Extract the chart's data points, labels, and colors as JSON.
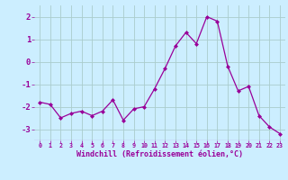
{
  "x": [
    0,
    1,
    2,
    3,
    4,
    5,
    6,
    7,
    8,
    9,
    10,
    11,
    12,
    13,
    14,
    15,
    16,
    17,
    18,
    19,
    20,
    21,
    22,
    23
  ],
  "y": [
    -1.8,
    -1.9,
    -2.5,
    -2.3,
    -2.2,
    -2.4,
    -2.2,
    -1.7,
    -2.6,
    -2.1,
    -2.0,
    -1.2,
    -0.3,
    0.7,
    1.3,
    0.8,
    2.0,
    1.8,
    -0.2,
    -1.3,
    -1.1,
    -2.4,
    -2.9,
    -3.2
  ],
  "line_color": "#990099",
  "marker_color": "#990099",
  "bg_color": "#cceeff",
  "grid_color": "#aacccc",
  "xlabel": "Windchill (Refroidissement éolien,°C)",
  "xlabel_color": "#990099",
  "tick_color": "#990099",
  "ylim": [
    -3.5,
    2.5
  ],
  "xlim": [
    -0.5,
    23.5
  ],
  "yticks": [
    -3,
    -2,
    -1,
    0,
    1,
    2
  ],
  "xticks": [
    0,
    1,
    2,
    3,
    4,
    5,
    6,
    7,
    8,
    9,
    10,
    11,
    12,
    13,
    14,
    15,
    16,
    17,
    18,
    19,
    20,
    21,
    22,
    23
  ],
  "ytick_fontsize": 6.5,
  "xtick_fontsize": 4.8,
  "xlabel_fontsize": 6.0
}
